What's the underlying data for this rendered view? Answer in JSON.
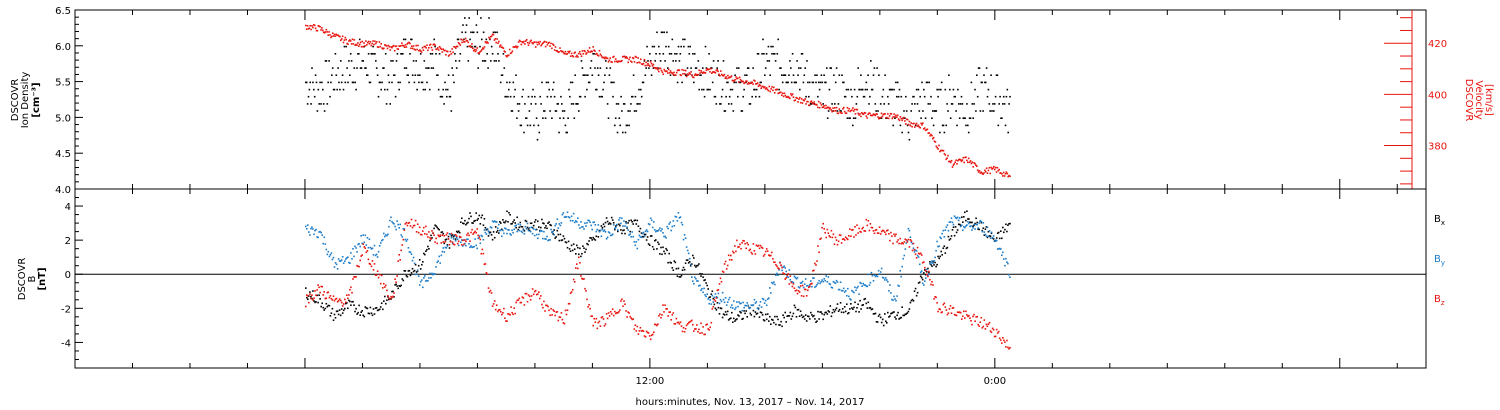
{
  "chart_data": [
    {
      "type": "scatter",
      "panel": "top",
      "title": "",
      "ylabel_left": [
        "DSCOVR",
        "Ion Density",
        "[cm⁻³]"
      ],
      "ylabel_right": [
        "DSCOVR",
        "Velocity",
        "[km/s]"
      ],
      "left_axis": {
        "ylim": [
          4.0,
          6.5
        ],
        "ticks": [
          "4.0",
          "4.5",
          "5.0",
          "5.5",
          "6.0",
          "6.5"
        ],
        "color": "#000000"
      },
      "right_axis": {
        "ylim": [
          363,
          433
        ],
        "ticks": [
          "380",
          "400",
          "420"
        ],
        "color": "#e8140e"
      },
      "x": [
        0,
        0.5,
        1,
        1.5,
        2,
        2.5,
        3,
        3.5,
        4,
        4.5,
        5,
        5.5,
        6,
        6.5,
        7,
        7.5,
        8,
        8.5,
        9,
        9.5,
        10,
        10.5,
        11,
        11.5,
        12,
        12.5,
        13,
        13.5,
        14,
        14.5,
        15,
        15.5,
        16,
        16.5,
        17,
        17.5,
        18,
        18.5,
        19,
        19.5,
        20,
        20.5,
        21,
        21.5,
        22,
        22.5,
        23,
        23.5,
        24,
        24.5
      ],
      "series": [
        {
          "name": "Ion Density",
          "axis": "left",
          "color": "#000000",
          "values": [
            5.5,
            5.4,
            5.6,
            5.7,
            5.8,
            5.6,
            5.5,
            5.9,
            5.7,
            5.8,
            5.3,
            6.1,
            6.0,
            6.1,
            5.5,
            5.2,
            5.0,
            5.3,
            5.0,
            5.4,
            5.8,
            5.4,
            5.0,
            5.4,
            5.8,
            6.1,
            5.8,
            5.7,
            5.6,
            5.5,
            5.4,
            5.4,
            5.8,
            5.7,
            5.8,
            5.5,
            5.3,
            5.4,
            5.2,
            5.6,
            5.3,
            5.2,
            5.0,
            5.3,
            5.1,
            5.3,
            5.1,
            5.4,
            5.3,
            5.1
          ]
        },
        {
          "name": "Velocity",
          "axis": "right",
          "color": "#e8140e",
          "values": [
            427,
            426,
            423,
            421,
            420,
            420,
            418,
            420,
            418,
            419,
            416,
            422,
            417,
            423,
            416,
            421,
            420,
            420,
            416,
            416,
            418,
            414,
            414,
            414,
            412,
            409,
            409,
            408,
            410,
            408,
            406,
            405,
            403,
            401,
            399,
            397,
            396,
            394,
            394,
            392,
            392,
            392,
            389,
            388,
            380,
            373,
            375,
            370,
            371,
            368
          ]
        }
      ]
    },
    {
      "type": "scatter",
      "panel": "bottom",
      "title": "",
      "ylabel_left": [
        "DSCOVR",
        "B",
        "[nT]"
      ],
      "left_axis": {
        "ylim": [
          -5.5,
          5.0
        ],
        "ticks": [
          "-4",
          "-2",
          "0",
          "2",
          "4"
        ]
      },
      "zero_line": true,
      "x": [
        0,
        0.5,
        1,
        1.5,
        2,
        2.5,
        3,
        3.5,
        4,
        4.5,
        5,
        5.5,
        6,
        6.5,
        7,
        7.5,
        8,
        8.5,
        9,
        9.5,
        10,
        10.5,
        11,
        11.5,
        12,
        12.5,
        13,
        13.5,
        14,
        14.5,
        15,
        15.5,
        16,
        16.5,
        17,
        17.5,
        18,
        18.5,
        19,
        19.5,
        20,
        20.5,
        21,
        21.5,
        22,
        22.5,
        23,
        23.5,
        24,
        24.5
      ],
      "series": [
        {
          "name": "Bx",
          "color": "#000000",
          "values": [
            -1.0,
            -1.5,
            -2.4,
            -1.8,
            -2.1,
            -2.0,
            -1.2,
            0.2,
            0.6,
            2.7,
            1.9,
            3.2,
            3.5,
            2.3,
            3.4,
            2.9,
            3.0,
            2.8,
            2.0,
            1.3,
            2.0,
            3.2,
            2.7,
            3.0,
            2.0,
            1.3,
            0.1,
            1.0,
            -0.9,
            -2.3,
            -2.6,
            -2.0,
            -2.6,
            -2.8,
            -2.1,
            -2.5,
            -2.4,
            -1.9,
            -2.0,
            -1.7,
            -2.7,
            -2.3,
            -2.1,
            0.2,
            0.8,
            2.4,
            3.5,
            2.8,
            2.0,
            3.0
          ]
        },
        {
          "name": "By",
          "color": "#1e7dc8",
          "values": [
            2.7,
            2.5,
            0.6,
            0.9,
            2.2,
            1.2,
            3.3,
            2.3,
            -0.7,
            0.4,
            2.1,
            2.0,
            1.9,
            3.0,
            2.4,
            2.8,
            2.5,
            2.3,
            3.6,
            3.1,
            2.9,
            2.3,
            3.2,
            1.8,
            3.0,
            2.4,
            3.5,
            -0.4,
            -1.4,
            -1.3,
            -1.8,
            -1.8,
            -1.7,
            0.6,
            -0.3,
            -0.6,
            -0.3,
            -0.5,
            -1.2,
            -0.4,
            0.3,
            -1.6,
            2.7,
            -0.4,
            1.8,
            3.2,
            2.8,
            2.9,
            2.1,
            0.2
          ]
        },
        {
          "name": "Bz",
          "color": "#e8140e",
          "values": [
            -1.5,
            -0.8,
            -1.6,
            -1.4,
            1.6,
            0.1,
            -1.5,
            3.2,
            2.7,
            2.2,
            2.1,
            2.1,
            2.5,
            -1.7,
            -2.4,
            -1.6,
            -0.9,
            -2.3,
            -2.6,
            0.8,
            -2.9,
            -2.6,
            -1.6,
            -3.2,
            -3.5,
            -1.8,
            -3.0,
            -3.0,
            -3.2,
            0.1,
            1.8,
            1.6,
            1.3,
            0.6,
            -0.8,
            -1.0,
            2.7,
            2.0,
            2.4,
            2.9,
            2.5,
            2.1,
            1.9,
            0.8,
            -1.8,
            -2.1,
            -2.5,
            -2.8,
            -3.3,
            -4.3
          ]
        }
      ]
    }
  ],
  "legend": [
    {
      "label": "B",
      "sub": "x",
      "color": "#000000"
    },
    {
      "label": "B",
      "sub": "y",
      "color": "#1e7dc8"
    },
    {
      "label": "B",
      "sub": "z",
      "color": "#e8140e"
    }
  ],
  "x_axis": {
    "major_ticks": [
      {
        "hour": 12,
        "label": "12:00"
      },
      {
        "hour": 24,
        "label": "0:00"
      }
    ],
    "xlim": [
      -8,
      39
    ],
    "label": "hours:minutes, Nov. 13, 2017 – Nov. 14, 2017"
  }
}
